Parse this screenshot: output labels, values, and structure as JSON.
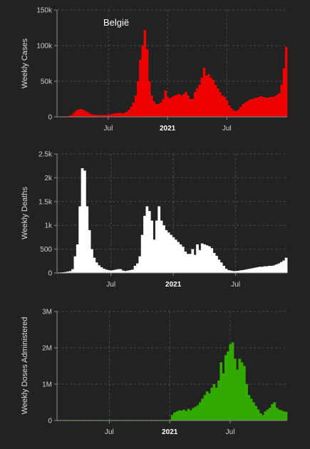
{
  "chart_data": [
    {
      "type": "bar",
      "title": "België",
      "ylabel": "Weekly Cases",
      "color": "#ee0000",
      "ylim": [
        0,
        150000
      ],
      "yticks": [
        0,
        50000,
        100000,
        150000
      ],
      "ytick_labels": [
        "0",
        "50k",
        "100k",
        "150k"
      ],
      "xticks": [
        {
          "index": 22,
          "label": "Jul",
          "bold": false
        },
        {
          "index": 48,
          "label": "2021",
          "bold": true
        },
        {
          "index": 74,
          "label": "Jul",
          "bold": false
        }
      ],
      "values": [
        500,
        600,
        700,
        800,
        1000,
        1500,
        3000,
        6000,
        9000,
        10500,
        11000,
        10000,
        8000,
        6500,
        4500,
        3500,
        3000,
        2800,
        2600,
        2500,
        2500,
        2600,
        3000,
        3500,
        4500,
        5000,
        5500,
        5500,
        5000,
        5500,
        7000,
        10000,
        14000,
        20000,
        30000,
        50000,
        80000,
        100000,
        122000,
        95000,
        50000,
        30000,
        22000,
        18000,
        18000,
        20000,
        25000,
        37000,
        28000,
        26000,
        28000,
        30000,
        31000,
        32000,
        30000,
        32000,
        35000,
        30000,
        25000,
        25000,
        35000,
        40000,
        45000,
        55000,
        69000,
        58000,
        60000,
        55000,
        52000,
        45000,
        40000,
        35000,
        30000,
        28000,
        23000,
        16000,
        12000,
        9000,
        8000,
        10000,
        14000,
        18000,
        20000,
        22000,
        24000,
        25000,
        26000,
        27000,
        28000,
        29000,
        28000,
        27000,
        27000,
        28000,
        28000,
        29000,
        31000,
        33000,
        45000,
        68000,
        98000
      ]
    },
    {
      "type": "bar",
      "title": "",
      "ylabel": "Weekly Deaths",
      "color": "#ffffff",
      "ylim": [
        0,
        2500
      ],
      "yticks": [
        0,
        500,
        1000,
        1500,
        2000,
        2500
      ],
      "ytick_labels": [
        "0",
        "500",
        "1k",
        "1.5k",
        "2k",
        "2.5k"
      ],
      "xticks": [
        {
          "index": 22,
          "label": "Jul",
          "bold": false
        },
        {
          "index": 48,
          "label": "2021",
          "bold": true
        },
        {
          "index": 74,
          "label": "Jul",
          "bold": false
        }
      ],
      "values": [
        5,
        10,
        15,
        20,
        30,
        40,
        80,
        350,
        600,
        1400,
        2200,
        2150,
        1400,
        900,
        500,
        320,
        220,
        160,
        120,
        90,
        70,
        60,
        50,
        60,
        70,
        80,
        80,
        50,
        40,
        50,
        60,
        70,
        150,
        200,
        350,
        800,
        1200,
        1400,
        1300,
        1100,
        700,
        1100,
        1400,
        1100,
        1000,
        900,
        850,
        800,
        750,
        700,
        650,
        600,
        550,
        450,
        400,
        400,
        500,
        380,
        600,
        480,
        620,
        600,
        580,
        560,
        520,
        420,
        360,
        280,
        220,
        150,
        90,
        60,
        50,
        40,
        40,
        45,
        55,
        60,
        70,
        80,
        90,
        100,
        110,
        120,
        130,
        130,
        140,
        140,
        150,
        150,
        160,
        180,
        200,
        230,
        260,
        320
      ]
    },
    {
      "type": "bar",
      "title": "",
      "ylabel": "Weekly Doses Administered",
      "color": "#33aa00",
      "ylim": [
        0,
        3000000
      ],
      "yticks": [
        0,
        1000000,
        2000000,
        3000000
      ],
      "ytick_labels": [
        "0",
        "1M",
        "2M",
        "3M"
      ],
      "xticks": [
        {
          "index": 22,
          "label": "Jul",
          "bold": false
        },
        {
          "index": 48,
          "label": "2021",
          "bold": true
        },
        {
          "index": 74,
          "label": "Jul",
          "bold": false
        }
      ],
      "values": [
        0,
        0,
        0,
        0,
        0,
        0,
        0,
        0,
        0,
        0,
        0,
        0,
        0,
        0,
        0,
        0,
        0,
        0,
        0,
        0,
        0,
        0,
        0,
        0,
        0,
        0,
        0,
        0,
        0,
        0,
        0,
        0,
        0,
        0,
        0,
        0,
        0,
        0,
        0,
        0,
        0,
        0,
        0,
        0,
        0,
        0,
        0,
        0,
        20000,
        150000,
        220000,
        250000,
        280000,
        270000,
        300000,
        260000,
        320000,
        280000,
        340000,
        380000,
        420000,
        500000,
        600000,
        700000,
        800000,
        750000,
        900000,
        1000000,
        900000,
        1100000,
        1600000,
        1300000,
        1800000,
        1900000,
        2100000,
        2150000,
        1700000,
        1400000,
        1700000,
        1600000,
        1500000,
        1000000,
        700000,
        600000,
        500000,
        400000,
        300000,
        200000,
        150000,
        250000,
        300000,
        350000,
        450000,
        500000,
        350000,
        300000,
        280000,
        250000,
        240000
      ]
    }
  ]
}
